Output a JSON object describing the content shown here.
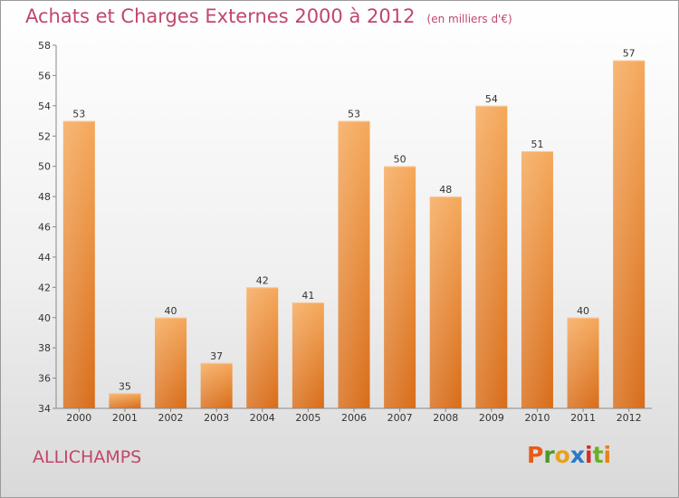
{
  "chart_data": {
    "type": "bar",
    "title": "Achats et Charges Externes 2000 à 2012",
    "subtitle": "(en milliers d'€)",
    "categories": [
      "2000",
      "2001",
      "2002",
      "2003",
      "2004",
      "2005",
      "2006",
      "2007",
      "2008",
      "2009",
      "2010",
      "2011",
      "2012"
    ],
    "values": [
      53,
      35,
      40,
      37,
      42,
      41,
      53,
      50,
      48,
      54,
      51,
      40,
      57
    ],
    "ylim": [
      34,
      58
    ],
    "yticks": [
      34,
      36,
      38,
      40,
      42,
      44,
      46,
      48,
      50,
      52,
      54,
      56,
      58
    ],
    "xlabel": "",
    "ylabel": "",
    "grid": false,
    "bar_color": "#e8832a"
  },
  "footer": {
    "location": "ALLICHAMPS",
    "brand_letters": [
      "P",
      "r",
      "o",
      "x",
      "i",
      "t",
      "i"
    ],
    "brand_colors": [
      "#e85a1a",
      "#4a9a2a",
      "#e8a21a",
      "#2a7ac8",
      "#d0302a",
      "#6ab02a",
      "#e8821a"
    ]
  }
}
